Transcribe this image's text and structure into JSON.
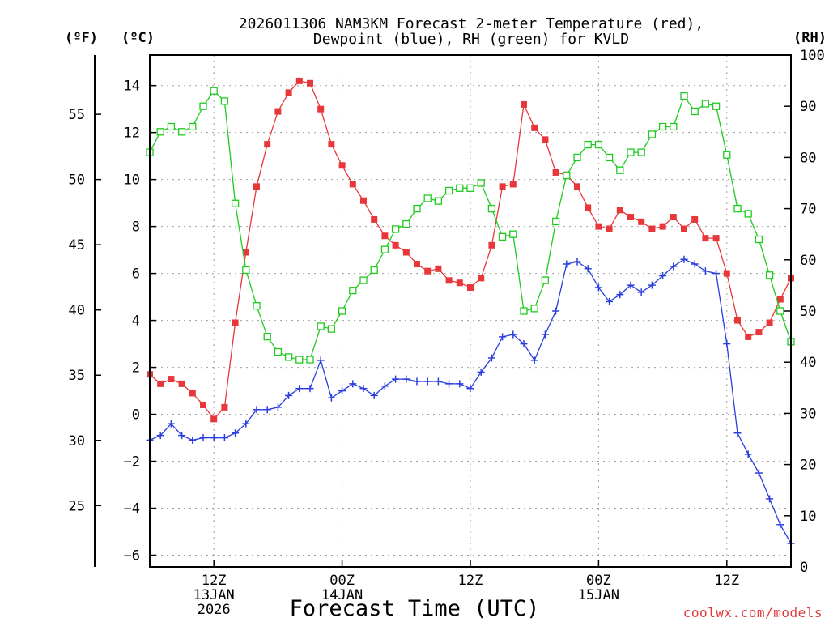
{
  "chart_data": {
    "type": "line",
    "title": "2026011306 NAM3KM Forecast 2-meter Temperature (red),",
    "subtitle": "Dewpoint (blue), RH (green) for KVLD",
    "xlabel": "Forecast Time (UTC)",
    "credit": "coolwx.com/models",
    "units": {
      "fahrenheit": "(ºF)",
      "celsius": "(ºC)",
      "rh": "(RH)"
    },
    "x_range_hours": [
      6,
      66
    ],
    "x_ticks": [
      {
        "hour": 12,
        "lines": [
          "12Z",
          "13JAN",
          "2026"
        ]
      },
      {
        "hour": 24,
        "lines": [
          "00Z",
          "14JAN"
        ]
      },
      {
        "hour": 36,
        "lines": [
          "12Z"
        ]
      },
      {
        "hour": 48,
        "lines": [
          "00Z",
          "15JAN"
        ]
      },
      {
        "hour": 60,
        "lines": [
          "12Z"
        ]
      }
    ],
    "y_celsius": {
      "range": [
        -6.5,
        15.3
      ],
      "ticks": [
        "-6",
        "-4",
        "-2",
        "0",
        "2",
        "4",
        "6",
        "8",
        "10",
        "12",
        "14"
      ]
    },
    "y_fahrenheit": {
      "ticks": [
        "25",
        "30",
        "35",
        "40",
        "45",
        "50",
        "55"
      ]
    },
    "y_rh": {
      "range": [
        0,
        100
      ],
      "ticks": [
        "0",
        "10",
        "20",
        "30",
        "40",
        "50",
        "60",
        "70",
        "80",
        "90",
        "100"
      ]
    },
    "series": [
      {
        "name": "2-meter Temperature",
        "color": "#e8373a",
        "marker": "filled-square",
        "axis": "celsius",
        "values": [
          1.7,
          1.3,
          1.5,
          1.3,
          0.9,
          0.4,
          -0.2,
          0.3,
          3.9,
          6.9,
          9.7,
          11.5,
          12.9,
          13.7,
          14.2,
          14.1,
          13.0,
          11.5,
          10.6,
          9.8,
          9.1,
          8.3,
          7.6,
          7.2,
          6.9,
          6.4,
          6.1,
          6.2,
          5.7,
          5.6,
          5.4,
          5.8,
          7.2,
          9.7,
          9.8,
          13.2,
          12.2,
          11.7,
          10.3,
          10.2,
          9.7,
          8.8,
          8.0,
          7.9,
          8.7,
          8.4,
          8.2,
          7.9,
          8.0,
          8.4,
          7.9,
          8.3,
          7.5,
          7.5,
          6.0,
          4.0,
          3.3,
          3.5,
          3.9,
          4.9,
          5.8
        ]
      },
      {
        "name": "Dewpoint",
        "color": "#2a3ee0",
        "marker": "plus",
        "axis": "celsius",
        "values": [
          -1.1,
          -0.9,
          -0.4,
          -0.9,
          -1.1,
          -1.0,
          -1.0,
          -1.0,
          -0.8,
          -0.4,
          0.2,
          0.2,
          0.3,
          0.8,
          1.1,
          1.1,
          2.3,
          0.7,
          1.0,
          1.3,
          1.1,
          0.8,
          1.2,
          1.5,
          1.5,
          1.4,
          1.4,
          1.4,
          1.3,
          1.3,
          1.1,
          1.8,
          2.4,
          3.3,
          3.4,
          3.0,
          2.3,
          3.4,
          4.4,
          6.4,
          6.5,
          6.2,
          5.4,
          4.8,
          5.1,
          5.5,
          5.2,
          5.5,
          5.9,
          6.3,
          6.6,
          6.4,
          6.1,
          6.0,
          3.0,
          -0.8,
          -1.7,
          -2.5,
          -3.6,
          -4.7,
          -5.5
        ]
      },
      {
        "name": "RH",
        "color": "#1ecb1e",
        "marker": "open-square",
        "axis": "rh",
        "values": [
          81,
          85,
          86,
          85,
          86,
          90,
          93,
          91,
          71,
          58,
          51,
          45,
          42,
          41,
          40.5,
          40.5,
          47,
          46.5,
          50,
          54,
          56,
          58,
          62,
          66,
          67,
          70,
          72,
          71.5,
          73.5,
          74,
          74,
          75,
          70,
          64.5,
          65,
          50,
          50.5,
          56,
          67.5,
          76.5,
          80,
          82.5,
          82.5,
          80,
          77.5,
          81,
          81,
          84.5,
          86,
          86,
          92,
          89,
          90.5,
          90,
          80.5,
          70,
          69,
          64,
          57,
          50,
          44
        ]
      }
    ]
  }
}
